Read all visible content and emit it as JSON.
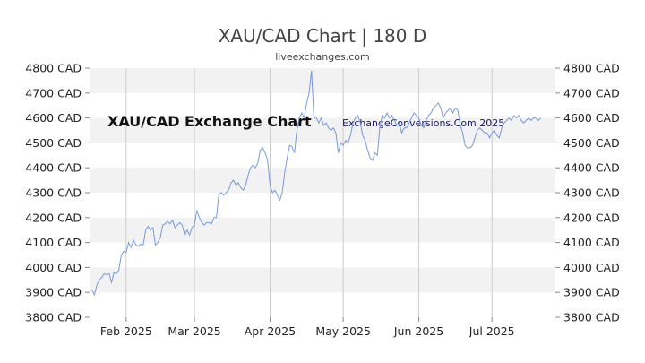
{
  "header": {
    "title": "XAU/CAD Chart | 180 D",
    "subtitle": "liveexchanges.com"
  },
  "watermarks": {
    "main": "XAU/CAD Exchange Chart",
    "source": "ExchangeConversions.Com 2025"
  },
  "colors": {
    "line": "#7799dd",
    "band": "#f2f2f2",
    "grid": "#cccccc",
    "axis": "#888888"
  },
  "chart_data": {
    "type": "line",
    "title": "XAU/CAD Chart | 180 D",
    "subtitle": "liveexchanges.com",
    "ylim": [
      3800,
      4800
    ],
    "yticks": [
      "3800 CAD",
      "3900 CAD",
      "4000 CAD",
      "4100 CAD",
      "4200 CAD",
      "4300 CAD",
      "4400 CAD",
      "4500 CAD",
      "4600 CAD",
      "4700 CAD",
      "4800 CAD"
    ],
    "xticks": [
      "Feb 2025",
      "Mar 2025",
      "Apr 2025",
      "May 2025",
      "Jun 2025",
      "Jul 2025"
    ],
    "grid": true,
    "x_start": "2025-01-17",
    "x_end": "2025-07-27",
    "series": [
      {
        "values": [
          [
            "2025-01-18",
            3910
          ],
          [
            "2025-01-19",
            3890
          ],
          [
            "2025-01-20",
            3930
          ],
          [
            "2025-01-21",
            3950
          ],
          [
            "2025-01-22",
            3960
          ],
          [
            "2025-01-23",
            3975
          ],
          [
            "2025-01-24",
            3970
          ],
          [
            "2025-01-25",
            3975
          ],
          [
            "2025-01-26",
            3940
          ],
          [
            "2025-01-27",
            3980
          ],
          [
            "2025-01-28",
            3975
          ],
          [
            "2025-01-29",
            3990
          ],
          [
            "2025-01-30",
            4050
          ],
          [
            "2025-01-31",
            4065
          ],
          [
            "2025-02-01",
            4060
          ],
          [
            "2025-02-02",
            4100
          ],
          [
            "2025-02-03",
            4080
          ],
          [
            "2025-02-04",
            4110
          ],
          [
            "2025-02-05",
            4090
          ],
          [
            "2025-02-06",
            4085
          ],
          [
            "2025-02-07",
            4095
          ],
          [
            "2025-02-08",
            4090
          ],
          [
            "2025-02-09",
            4150
          ],
          [
            "2025-02-10",
            4165
          ],
          [
            "2025-02-11",
            4150
          ],
          [
            "2025-02-12",
            4160
          ],
          [
            "2025-02-13",
            4090
          ],
          [
            "2025-02-14",
            4100
          ],
          [
            "2025-02-15",
            4120
          ],
          [
            "2025-02-16",
            4170
          ],
          [
            "2025-02-17",
            4175
          ],
          [
            "2025-02-18",
            4185
          ],
          [
            "2025-02-19",
            4175
          ],
          [
            "2025-02-20",
            4190
          ],
          [
            "2025-02-21",
            4160
          ],
          [
            "2025-02-22",
            4170
          ],
          [
            "2025-02-23",
            4180
          ],
          [
            "2025-02-24",
            4170
          ],
          [
            "2025-02-25",
            4130
          ],
          [
            "2025-02-26",
            4150
          ],
          [
            "2025-02-27",
            4130
          ],
          [
            "2025-02-28",
            4160
          ],
          [
            "2025-03-01",
            4170
          ],
          [
            "2025-03-02",
            4230
          ],
          [
            "2025-03-03",
            4200
          ],
          [
            "2025-03-04",
            4180
          ],
          [
            "2025-03-05",
            4170
          ],
          [
            "2025-03-06",
            4180
          ],
          [
            "2025-03-07",
            4180
          ],
          [
            "2025-03-08",
            4175
          ],
          [
            "2025-03-09",
            4200
          ],
          [
            "2025-03-10",
            4200
          ],
          [
            "2025-03-11",
            4290
          ],
          [
            "2025-03-12",
            4300
          ],
          [
            "2025-03-13",
            4290
          ],
          [
            "2025-03-14",
            4300
          ],
          [
            "2025-03-15",
            4310
          ],
          [
            "2025-03-16",
            4340
          ],
          [
            "2025-03-17",
            4350
          ],
          [
            "2025-03-18",
            4330
          ],
          [
            "2025-03-19",
            4340
          ],
          [
            "2025-03-20",
            4320
          ],
          [
            "2025-03-21",
            4310
          ],
          [
            "2025-03-22",
            4330
          ],
          [
            "2025-03-23",
            4370
          ],
          [
            "2025-03-24",
            4400
          ],
          [
            "2025-03-25",
            4410
          ],
          [
            "2025-03-26",
            4400
          ],
          [
            "2025-03-27",
            4420
          ],
          [
            "2025-03-28",
            4470
          ],
          [
            "2025-03-29",
            4480
          ],
          [
            "2025-03-30",
            4460
          ],
          [
            "2025-03-31",
            4430
          ],
          [
            "2025-04-01",
            4330
          ],
          [
            "2025-04-02",
            4300
          ],
          [
            "2025-04-03",
            4310
          ],
          [
            "2025-04-04",
            4290
          ],
          [
            "2025-04-05",
            4270
          ],
          [
            "2025-04-06",
            4300
          ],
          [
            "2025-04-07",
            4380
          ],
          [
            "2025-04-08",
            4440
          ],
          [
            "2025-04-09",
            4490
          ],
          [
            "2025-04-10",
            4485
          ],
          [
            "2025-04-11",
            4460
          ],
          [
            "2025-04-12",
            4550
          ],
          [
            "2025-04-13",
            4600
          ],
          [
            "2025-04-14",
            4620
          ],
          [
            "2025-04-15",
            4600
          ],
          [
            "2025-04-16",
            4660
          ],
          [
            "2025-04-17",
            4700
          ],
          [
            "2025-04-18",
            4790
          ],
          [
            "2025-04-19",
            4600
          ],
          [
            "2025-04-20",
            4600
          ],
          [
            "2025-04-21",
            4580
          ],
          [
            "2025-04-22",
            4600
          ],
          [
            "2025-04-23",
            4570
          ],
          [
            "2025-04-24",
            4580
          ],
          [
            "2025-04-25",
            4560
          ],
          [
            "2025-04-26",
            4550
          ],
          [
            "2025-04-27",
            4560
          ],
          [
            "2025-04-28",
            4540
          ],
          [
            "2025-04-29",
            4460
          ],
          [
            "2025-04-30",
            4500
          ],
          [
            "2025-05-01",
            4490
          ],
          [
            "2025-05-02",
            4510
          ],
          [
            "2025-05-03",
            4500
          ],
          [
            "2025-05-04",
            4530
          ],
          [
            "2025-05-05",
            4580
          ],
          [
            "2025-05-06",
            4600
          ],
          [
            "2025-05-07",
            4610
          ],
          [
            "2025-05-08",
            4580
          ],
          [
            "2025-05-09",
            4530
          ],
          [
            "2025-05-10",
            4510
          ],
          [
            "2025-05-11",
            4470
          ],
          [
            "2025-05-12",
            4440
          ],
          [
            "2025-05-13",
            4430
          ],
          [
            "2025-05-14",
            4460
          ],
          [
            "2025-05-15",
            4450
          ],
          [
            "2025-05-16",
            4560
          ],
          [
            "2025-05-17",
            4610
          ],
          [
            "2025-05-18",
            4600
          ],
          [
            "2025-05-19",
            4620
          ],
          [
            "2025-05-20",
            4600
          ],
          [
            "2025-05-21",
            4610
          ],
          [
            "2025-05-22",
            4590
          ],
          [
            "2025-05-23",
            4570
          ],
          [
            "2025-05-24",
            4580
          ],
          [
            "2025-05-25",
            4540
          ],
          [
            "2025-05-26",
            4560
          ],
          [
            "2025-05-27",
            4560
          ],
          [
            "2025-05-28",
            4580
          ],
          [
            "2025-05-29",
            4600
          ],
          [
            "2025-05-30",
            4620
          ],
          [
            "2025-05-31",
            4610
          ],
          [
            "2025-06-01",
            4600
          ],
          [
            "2025-06-02",
            4570
          ],
          [
            "2025-06-03",
            4560
          ],
          [
            "2025-06-04",
            4590
          ],
          [
            "2025-06-05",
            4610
          ],
          [
            "2025-06-06",
            4620
          ],
          [
            "2025-06-07",
            4640
          ],
          [
            "2025-06-08",
            4650
          ],
          [
            "2025-06-09",
            4660
          ],
          [
            "2025-06-10",
            4640
          ],
          [
            "2025-06-11",
            4600
          ],
          [
            "2025-06-12",
            4620
          ],
          [
            "2025-06-13",
            4630
          ],
          [
            "2025-06-14",
            4640
          ],
          [
            "2025-06-15",
            4620
          ],
          [
            "2025-06-16",
            4640
          ],
          [
            "2025-06-17",
            4630
          ],
          [
            "2025-06-18",
            4570
          ],
          [
            "2025-06-19",
            4540
          ],
          [
            "2025-06-20",
            4490
          ],
          [
            "2025-06-21",
            4480
          ],
          [
            "2025-06-22",
            4480
          ],
          [
            "2025-06-23",
            4490
          ],
          [
            "2025-06-24",
            4520
          ],
          [
            "2025-06-25",
            4550
          ],
          [
            "2025-06-26",
            4560
          ],
          [
            "2025-06-27",
            4550
          ],
          [
            "2025-06-28",
            4540
          ],
          [
            "2025-06-29",
            4540
          ],
          [
            "2025-06-30",
            4520
          ],
          [
            "2025-07-01",
            4540
          ],
          [
            "2025-07-02",
            4550
          ],
          [
            "2025-07-03",
            4530
          ],
          [
            "2025-07-04",
            4520
          ],
          [
            "2025-07-05",
            4560
          ],
          [
            "2025-07-06",
            4580
          ],
          [
            "2025-07-07",
            4590
          ],
          [
            "2025-07-08",
            4600
          ],
          [
            "2025-07-09",
            4590
          ],
          [
            "2025-07-10",
            4610
          ],
          [
            "2025-07-11",
            4600
          ],
          [
            "2025-07-12",
            4610
          ],
          [
            "2025-07-13",
            4590
          ],
          [
            "2025-07-14",
            4580
          ],
          [
            "2025-07-15",
            4590
          ],
          [
            "2025-07-16",
            4600
          ],
          [
            "2025-07-17",
            4590
          ],
          [
            "2025-07-18",
            4600
          ],
          [
            "2025-07-19",
            4600
          ],
          [
            "2025-07-20",
            4590
          ],
          [
            "2025-07-21",
            4600
          ]
        ]
      }
    ]
  }
}
